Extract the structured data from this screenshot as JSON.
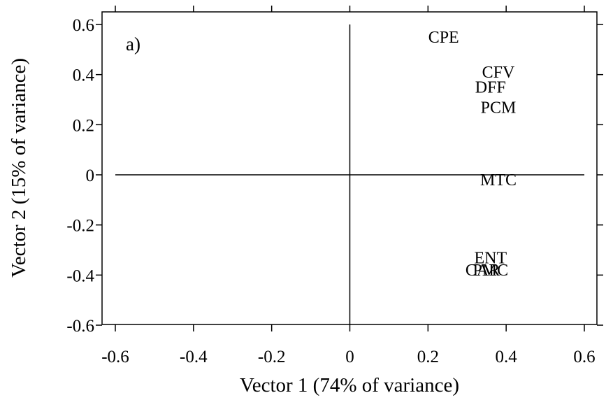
{
  "chart_data": {
    "type": "scatter",
    "panel_label": "a)",
    "xlabel": "Vector 1 (74% of variance)",
    "ylabel": "Vector 2 (15% of variance)",
    "xlim": [
      -0.65,
      0.65
    ],
    "ylim": [
      -0.65,
      0.65
    ],
    "x_ticks": [
      -0.6,
      -0.4,
      -0.2,
      0,
      0.2,
      0.4,
      0.6
    ],
    "y_ticks": [
      -0.6,
      -0.4,
      -0.2,
      0,
      0.2,
      0.4,
      0.6
    ],
    "x_tick_labels": [
      "-0.6",
      "-0.4",
      "-0.2",
      "0",
      "0.2",
      "0.4",
      "0.6"
    ],
    "y_tick_labels": [
      "-0.6",
      "-0.4",
      "-0.2",
      "0",
      "0.2",
      "0.4",
      "0.6"
    ],
    "reference_lines": {
      "x": 0,
      "y": 0
    },
    "points": [
      {
        "label": "CPE",
        "x": 0.24,
        "y": 0.55
      },
      {
        "label": "CFV",
        "x": 0.38,
        "y": 0.41
      },
      {
        "label": "DFF",
        "x": 0.36,
        "y": 0.35
      },
      {
        "label": "PCM",
        "x": 0.38,
        "y": 0.27
      },
      {
        "label": "MTC",
        "x": 0.38,
        "y": -0.02
      },
      {
        "label": "ENT",
        "x": 0.36,
        "y": -0.33
      },
      {
        "label": "CAR",
        "x": 0.34,
        "y": -0.38
      },
      {
        "label": "PMC",
        "x": 0.36,
        "y": -0.38
      }
    ]
  }
}
